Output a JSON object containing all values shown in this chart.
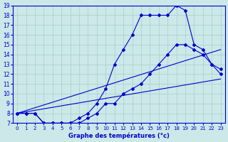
{
  "xlabel": "Graphe des températures (°c)",
  "bg_color": "#cce8e8",
  "line_color": "#0000cc",
  "grid_color": "#aacccc",
  "xlim": [
    -0.5,
    23.5
  ],
  "ylim": [
    7,
    19
  ],
  "xticks": [
    0,
    1,
    2,
    3,
    4,
    5,
    6,
    7,
    8,
    9,
    10,
    11,
    12,
    13,
    14,
    15,
    16,
    17,
    18,
    19,
    20,
    21,
    22,
    23
  ],
  "yticks": [
    7,
    8,
    9,
    10,
    11,
    12,
    13,
    14,
    15,
    16,
    17,
    18,
    19
  ],
  "line1_x": [
    0,
    1,
    2,
    3,
    4,
    5,
    6,
    7,
    8,
    9,
    10,
    11,
    12,
    13,
    14,
    15,
    16,
    17,
    18,
    19,
    20,
    21,
    22,
    23
  ],
  "line1_y": [
    8,
    8,
    8,
    7,
    7,
    7,
    7,
    7.5,
    8,
    9,
    10.5,
    13,
    14.5,
    16,
    18,
    18,
    18,
    18,
    19,
    18.5,
    15,
    14.5,
    13,
    12.5
  ],
  "line2_x": [
    0,
    1,
    2,
    3,
    4,
    5,
    6,
    7,
    8,
    9,
    10,
    11,
    12,
    13,
    14,
    15,
    16,
    17,
    18,
    19,
    20,
    21,
    22,
    23
  ],
  "line2_y": [
    8,
    8,
    8,
    7,
    7,
    7,
    7,
    7,
    7.5,
    8,
    9,
    9,
    10,
    10.5,
    11,
    12,
    13,
    14,
    15,
    15,
    14.5,
    14,
    13,
    12
  ],
  "line3_x": [
    0,
    23
  ],
  "line3_y": [
    8,
    14.5
  ],
  "line4_x": [
    0,
    23
  ],
  "line4_y": [
    8,
    11.5
  ]
}
